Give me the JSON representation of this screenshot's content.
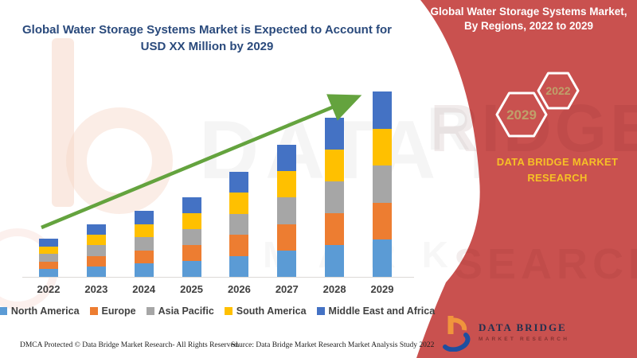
{
  "page": {
    "main_title_line1": "Global Water Storage Systems Market is Expected to Account for",
    "main_title_line2": "USD XX Million by 2029",
    "title_color": "#2a4a7c"
  },
  "chart_data": {
    "type": "bar",
    "stacked": true,
    "title": "Global Water Storage Systems Market is Expected to Account for USD XX Million by 2029",
    "x_categories": [
      "2022",
      "2023",
      "2024",
      "2025",
      "2026",
      "2027",
      "2028",
      "2029"
    ],
    "series": [
      {
        "name": "North America",
        "color": "#5b9bd5",
        "values": [
          9.6,
          13.2,
          16.6,
          20.0,
          26.4,
          33.2,
          40.0,
          46.6
        ]
      },
      {
        "name": "Europe",
        "color": "#ed7d31",
        "values": [
          9.6,
          13.2,
          16.6,
          20.0,
          26.4,
          33.2,
          40.0,
          46.6
        ]
      },
      {
        "name": "Asia Pacific",
        "color": "#a6a6a6",
        "values": [
          9.6,
          13.2,
          16.6,
          20.0,
          26.4,
          33.2,
          40.0,
          46.6
        ]
      },
      {
        "name": "South America",
        "color": "#ffc000",
        "values": [
          9.6,
          13.2,
          16.6,
          20.0,
          26.4,
          33.2,
          40.0,
          46.6
        ]
      },
      {
        "name": "Middle East and Africa",
        "color": "#4472c4",
        "values": [
          9.6,
          13.2,
          16.6,
          20.0,
          26.4,
          33.2,
          40.0,
          46.6
        ]
      }
    ],
    "stack_totals": [
      48,
      66,
      83,
      100,
      132,
      166,
      200,
      233
    ],
    "units": "relative index (actual market values masked as XX in source)",
    "value_axis_visible": false,
    "gridlines": false,
    "legend_position": "bottom",
    "trend_arrow": {
      "present": true,
      "color": "#64a33e"
    }
  },
  "footer": {
    "dmca": "DMCA Protected © Data Bridge Market Research- All Rights Reserved.",
    "source": "Source: Data Bridge Market Research Market Analysis Study 2022"
  },
  "panel": {
    "accent_color": "#c9514f",
    "title_line1": "Global Water Storage Systems Market,",
    "title_line2": "By Regions, 2022 to 2029",
    "hexagons": [
      {
        "label": "2029"
      },
      {
        "label": "2022"
      }
    ],
    "hex_label_color": "#bfa06a",
    "brand_text_line1": "DATA BRIDGE MARKET",
    "brand_text_line2": "RESEARCH",
    "brand_text_color": "#f6c026",
    "logo": {
      "title": "DATA BRIDGE",
      "subtitle": "MARKET RESEARCH"
    }
  }
}
